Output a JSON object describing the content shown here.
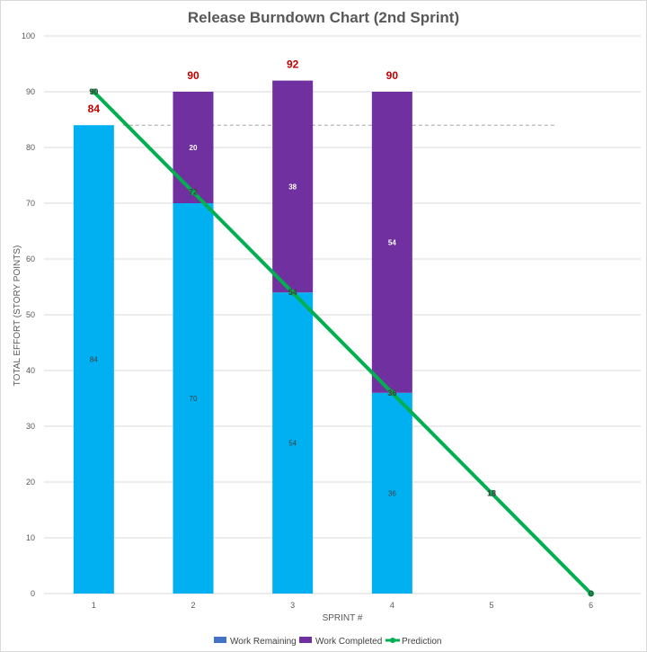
{
  "chart_data": {
    "type": "bar",
    "title": "Release Burndown Chart (2nd Sprint)",
    "xlabel": "SPRINT #",
    "ylabel": "TOTAL EFFORT (STORY POINTS)",
    "ylim": [
      0,
      100
    ],
    "yticks": [
      0,
      10,
      20,
      30,
      40,
      50,
      60,
      70,
      80,
      90,
      100
    ],
    "categories": [
      "1",
      "2",
      "3",
      "4",
      "5",
      "6"
    ],
    "stacked": true,
    "series": [
      {
        "name": "Work Remaining",
        "kind": "bar",
        "color": "#00b0f0",
        "values": [
          84,
          70,
          54,
          36,
          null,
          null
        ],
        "labels": [
          "84",
          "70",
          "54",
          "36",
          "",
          ""
        ]
      },
      {
        "name": "Work Completed",
        "kind": "bar",
        "color": "#7030a0",
        "values": [
          null,
          20,
          38,
          54,
          null,
          null
        ],
        "labels": [
          "",
          "20",
          "38",
          "54",
          "",
          ""
        ]
      },
      {
        "name": "Prediction",
        "kind": "line",
        "color": "#00b050",
        "values": [
          90,
          72,
          54,
          36,
          18,
          0
        ],
        "labels": [
          "90",
          "72",
          "54",
          "36",
          "18",
          "0"
        ]
      }
    ],
    "totals": [
      "84",
      "90",
      "92",
      "90",
      "",
      ""
    ],
    "totals_color": "#c00000",
    "reference_line": {
      "value": 84,
      "style": "dashed",
      "color": "#a6a6a6"
    },
    "grid": true,
    "legend_position": "bottom"
  }
}
